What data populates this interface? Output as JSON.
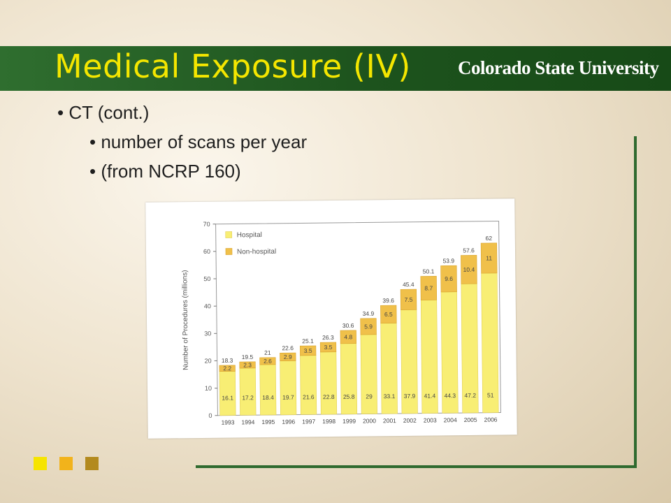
{
  "slide": {
    "title": "Medical Exposure (IV)",
    "logo": "Colorado State University",
    "bullets": [
      "CT (cont.)",
      "number of scans per year",
      "(from NCRP 160)"
    ]
  },
  "colors": {
    "title_text": "#f4e600",
    "title_bar": "#1d531d",
    "hospital": "#f8ee74",
    "non_hospital": "#f0c04a",
    "accent_squares": [
      "#f6e400",
      "#f2b31b",
      "#b38a1e"
    ]
  },
  "chart_data": {
    "type": "bar",
    "stacked": true,
    "categories": [
      "1993",
      "1994",
      "1995",
      "1996",
      "1997",
      "1998",
      "1999",
      "2000",
      "2001",
      "2002",
      "2003",
      "2004",
      "2005",
      "2006"
    ],
    "series": [
      {
        "name": "Hospital",
        "values": [
          16.1,
          17.2,
          18.4,
          19.7,
          21.6,
          22.8,
          25.8,
          29,
          33.1,
          37.9,
          41.4,
          44.3,
          47.2,
          51
        ]
      },
      {
        "name": "Non-hospital",
        "values": [
          2.2,
          2.3,
          2.6,
          2.9,
          3.5,
          3.5,
          4.8,
          5.9,
          6.5,
          7.5,
          8.7,
          9.6,
          10.4,
          11
        ]
      }
    ],
    "hospital_labels": [
      "16.1",
      "17.2",
      "18.4",
      "19.7",
      "21.6",
      "22.8",
      "25.8",
      "29",
      "33.1",
      "37.9",
      "41.4",
      "44.3",
      "47.2",
      "51"
    ],
    "non_hospital_labels": [
      "2.2",
      "2.3",
      "2.6",
      "2.9",
      "3.5",
      "3.5",
      "4.8",
      "5.9",
      "6.5",
      "7.5",
      "8.7",
      "9.6",
      "10.4",
      "11"
    ],
    "total_labels": [
      "18.3",
      "19.5",
      "21",
      "22.6",
      "25.1",
      "26.3",
      "30.6",
      "34.9",
      "39.6",
      "45.4",
      "50.1",
      "53.9",
      "57.6",
      "62"
    ],
    "ylabel": "Number of Procedures (millions)",
    "xlabel": "",
    "ylim": [
      0,
      70
    ],
    "yticks": [
      0,
      10,
      20,
      30,
      40,
      50,
      60,
      70
    ],
    "legend_position": "top-left"
  }
}
